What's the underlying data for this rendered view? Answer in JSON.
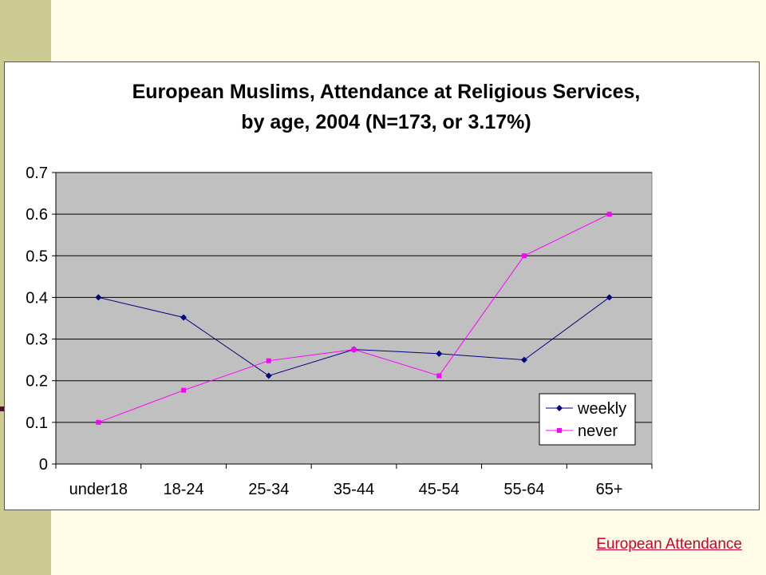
{
  "chart_data": {
    "type": "line",
    "title_line1": "European Muslims, Attendance at Religious Services,",
    "title_line2": "by age, 2004 (N=173, or 3.17%)",
    "xlabel": "",
    "ylabel": "",
    "categories": [
      "under18",
      "18-24",
      "25-34",
      "35-44",
      "45-54",
      "55-64",
      "65+"
    ],
    "ylim": [
      0,
      0.7
    ],
    "yticks": [
      "0",
      "0.1",
      "0.2",
      "0.3",
      "0.4",
      "0.5",
      "0.6",
      "0.7"
    ],
    "grid": true,
    "legend_position": "bottom-right",
    "series": [
      {
        "name": "weekly",
        "values": [
          0.4,
          0.352,
          0.212,
          0.275,
          0.265,
          0.25,
          0.4
        ],
        "color": "#000080",
        "marker": "diamond"
      },
      {
        "name": "never",
        "values": [
          0.1,
          0.177,
          0.248,
          0.275,
          0.212,
          0.5,
          0.6
        ],
        "color": "#ff00ff",
        "marker": "square"
      }
    ],
    "plot_background": "#c0c0c0"
  },
  "footer": {
    "link_text": "European Attendance"
  },
  "colors": {
    "page_background": "#fffbe6",
    "side_bar": "#cdcb94",
    "link": "#cc0033"
  }
}
